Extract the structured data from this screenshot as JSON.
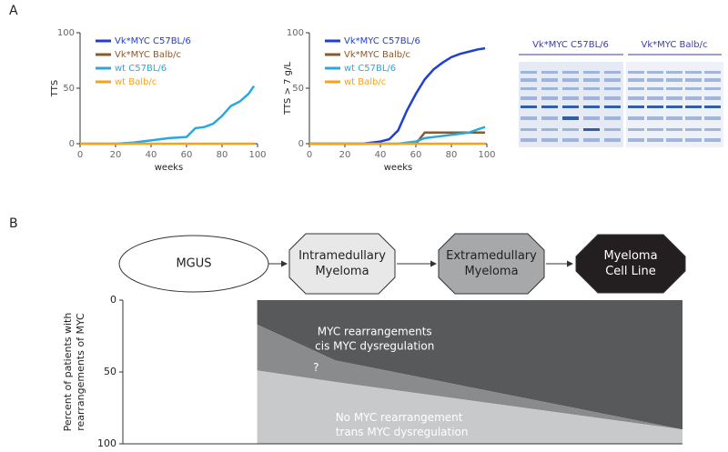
{
  "panel_labels": [
    "A",
    "B"
  ],
  "chart_data": [
    {
      "type": "line",
      "ylabel": "TTS",
      "xlabel": "weeks",
      "x": [
        0,
        10,
        20,
        30,
        40,
        50,
        60,
        65,
        70,
        75,
        80,
        85,
        90,
        95,
        98
      ],
      "xlim": [
        0,
        100
      ],
      "xticks": [
        0,
        20,
        40,
        60,
        80,
        100
      ],
      "ylim": [
        0,
        100
      ],
      "yticks": [
        0,
        50,
        100
      ],
      "grid": false,
      "legend": "top-left",
      "series": [
        {
          "name": "Vk*MYC C57BL/6",
          "color": "#1f3fd1",
          "values": [
            null,
            null,
            null,
            null,
            null,
            null,
            null,
            null,
            null,
            null,
            null,
            null,
            null,
            null,
            null
          ]
        },
        {
          "name": "Vk*MYC Balb/c",
          "color": "#8b5a2b",
          "values": [
            null,
            null,
            null,
            null,
            null,
            null,
            null,
            null,
            null,
            null,
            null,
            null,
            null,
            null,
            null
          ]
        },
        {
          "name": "wt C57BL/6",
          "color": "#29a8e0",
          "values": [
            0,
            0,
            0,
            1,
            3,
            5,
            6,
            14,
            15,
            18,
            25,
            34,
            38,
            45,
            52
          ]
        },
        {
          "name": "wt Balb/c",
          "color": "#f7a21b",
          "values": [
            0,
            0,
            0,
            0,
            0,
            0,
            0,
            0,
            0,
            0,
            0,
            0,
            0,
            0,
            0
          ]
        }
      ]
    },
    {
      "type": "line",
      "ylabel": "TTS > 7 g/L",
      "xlabel": "weeks",
      "x": [
        0,
        10,
        20,
        30,
        40,
        45,
        50,
        55,
        60,
        65,
        70,
        75,
        80,
        85,
        90,
        95,
        99
      ],
      "xlim": [
        0,
        100
      ],
      "xticks": [
        0,
        20,
        40,
        60,
        80,
        100
      ],
      "ylim": [
        0,
        100
      ],
      "yticks": [
        0,
        50,
        100
      ],
      "grid": false,
      "legend": "top-left",
      "series": [
        {
          "name": "Vk*MYC C57BL/6",
          "color": "#1f3fd1",
          "values": [
            0,
            0,
            0,
            0,
            2,
            4,
            12,
            30,
            45,
            58,
            67,
            73,
            78,
            81,
            83,
            85,
            86
          ]
        },
        {
          "name": "Vk*MYC Balb/c",
          "color": "#8b5a2b",
          "values": [
            null,
            null,
            null,
            null,
            null,
            null,
            null,
            null,
            0,
            10,
            10,
            10,
            10,
            10,
            10,
            10,
            10
          ]
        },
        {
          "name": "wt C57BL/6",
          "color": "#29a8e0",
          "values": [
            0,
            0,
            0,
            0,
            0,
            0,
            0,
            1,
            2,
            5,
            6,
            7,
            8,
            9,
            10,
            13,
            15
          ]
        },
        {
          "name": "wt Balb/c",
          "color": "#f7a21b",
          "values": [
            0,
            0,
            0,
            0,
            0,
            0,
            0,
            0,
            0,
            0,
            0,
            0,
            0,
            0,
            0,
            0,
            0
          ]
        }
      ]
    },
    {
      "type": "stacked-area",
      "ylabel_lines": [
        "Percent of patients with",
        "rearrangements of MYC"
      ],
      "x": [
        24,
        38,
        100
      ],
      "xlim": [
        0,
        100
      ],
      "ylim": [
        0,
        100
      ],
      "yticks": [
        0,
        50,
        100
      ],
      "y_inverted": true,
      "series": [
        {
          "label_lines": [
            "MYC rearrangements",
            "cis MYC dysregulation"
          ],
          "color": "#58595b",
          "text_color": "#ffffff",
          "values": [
            17,
            42,
            90
          ]
        },
        {
          "label_lines": [
            "?"
          ],
          "color": "#8a8b8d",
          "text_color": "#ffffff",
          "values": [
            32,
            15,
            0
          ]
        },
        {
          "label_lines": [
            "No MYC rearrangement",
            "trans MYC dysregulation"
          ],
          "color": "#c8c9cb",
          "text_color": "#ffffff",
          "values": [
            51,
            43,
            10
          ]
        }
      ]
    }
  ],
  "gel": {
    "labels": [
      "Vk*MYC C57BL/6",
      "Vk*MYC Balb/c"
    ]
  },
  "stages": [
    {
      "lines": [
        "MGUS"
      ]
    },
    {
      "lines": [
        "Intramedullary",
        "Myeloma"
      ]
    },
    {
      "lines": [
        "Extramedullary",
        "Myeloma"
      ]
    },
    {
      "lines": [
        "Myeloma",
        "Cell Line"
      ]
    }
  ]
}
